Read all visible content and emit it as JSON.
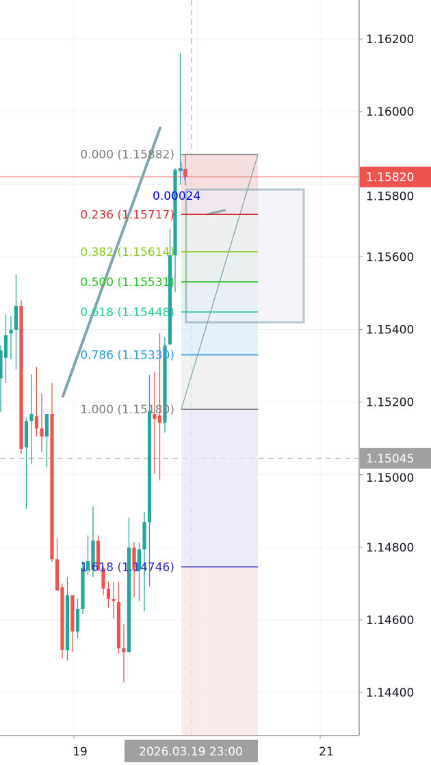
{
  "chart_data": {
    "type": "candlestick",
    "colors": {
      "up": "#26a69a",
      "down": "#ef5350"
    },
    "candles": [
      [
        1.15265,
        1.15356,
        1.15173,
        1.15342
      ],
      [
        1.15322,
        1.1544,
        1.15252,
        1.15384
      ],
      [
        1.15389,
        1.15436,
        1.15318,
        1.15399
      ],
      [
        1.15399,
        1.15552,
        1.1529,
        1.15465
      ],
      [
        1.15465,
        1.1548,
        1.15058,
        1.15071
      ],
      [
        1.15075,
        1.15156,
        1.14905,
        1.15148
      ],
      [
        1.15148,
        1.15276,
        1.15029,
        1.15167
      ],
      [
        1.15161,
        1.15297,
        1.15105,
        1.15127
      ],
      [
        1.15127,
        1.15224,
        1.15063,
        1.15105
      ],
      [
        1.15105,
        1.15167,
        1.1502,
        1.15167
      ],
      [
        1.15167,
        1.15252,
        1.1476,
        1.14767
      ],
      [
        1.14767,
        1.14824,
        1.14681,
        1.14681
      ],
      [
        1.1469,
        1.147,
        1.14494,
        1.14517
      ],
      [
        1.14517,
        1.14718,
        1.14488,
        1.14668
      ],
      [
        1.14668,
        1.14668,
        1.14511,
        1.14568
      ],
      [
        1.14568,
        1.14658,
        1.14549,
        1.1463
      ],
      [
        1.1463,
        1.14762,
        1.14617,
        1.14743
      ],
      [
        1.14737,
        1.14833,
        1.14724,
        1.14762
      ],
      [
        1.14737,
        1.14913,
        1.14718,
        1.14818
      ],
      [
        1.14818,
        1.14833,
        1.14734,
        1.14737
      ],
      [
        1.14743,
        1.14747,
        1.14668,
        1.14686
      ],
      [
        1.14686,
        1.14705,
        1.14634,
        1.14658
      ],
      [
        1.14658,
        1.14705,
        1.14605,
        1.14652
      ],
      [
        1.14649,
        1.14705,
        1.14507,
        1.14522
      ],
      [
        1.14522,
        1.14588,
        1.14428,
        1.14511
      ],
      [
        1.14511,
        1.14881,
        1.14511,
        1.14799
      ],
      [
        1.14799,
        1.14813,
        1.14662,
        1.14737
      ],
      [
        1.14737,
        1.14813,
        1.14652,
        1.14794
      ],
      [
        1.14794,
        1.14897,
        1.14624,
        1.14869
      ],
      [
        1.14869,
        1.15274,
        1.14692,
        1.15176
      ],
      [
        1.15167,
        1.15284,
        1.15003,
        1.15154
      ],
      [
        1.15163,
        1.15389,
        1.14984,
        1.15143
      ],
      [
        1.15143,
        1.15378,
        1.15116,
        1.15356
      ],
      [
        1.15359,
        1.15676,
        1.15356,
        1.15604
      ],
      [
        1.15604,
        1.15844,
        1.15503,
        1.1584
      ],
      [
        1.15836,
        1.16162,
        1.15798,
        1.15844
      ],
      [
        1.15842,
        1.15881,
        1.15798,
        1.1582
      ]
    ],
    "y_axis": {
      "range": [
        1.1432,
        1.1633
      ],
      "ticks": [
        "1.16200",
        "1.16000",
        "1.15800",
        "1.15600",
        "1.15400",
        "1.15200",
        "1.15000",
        "1.14800",
        "1.14600",
        "1.14400"
      ]
    },
    "x_axis": {
      "ticks": [
        "19",
        "21"
      ]
    },
    "grid": true,
    "last_price": {
      "label": "1.15820",
      "value": 1.1582,
      "color": "#ef5350"
    },
    "crosshair": {
      "time_label": "2026.03.19 23:00",
      "price_label": "1.15045",
      "price": 1.15045
    },
    "measure_label": "0.00024",
    "fib_retracement": {
      "levels": [
        {
          "ratio": 0.0,
          "price": 1.15882,
          "label": "0.000 (1.15882)",
          "color": "#808080",
          "fill": "#f2d4d4"
        },
        {
          "ratio": 0.236,
          "price": 1.15717,
          "label": "0.236 (1.15717)",
          "color": "#d32f2f",
          "fill": "#eaf0d8"
        },
        {
          "ratio": 0.382,
          "price": 1.15614,
          "label": "0.382 (1.15614)",
          "color": "#8bc926",
          "fill": "#def0d8"
        },
        {
          "ratio": 0.5,
          "price": 1.15531,
          "label": "0.500 (1.15531)",
          "color": "#22c322",
          "fill": "#d8efe8"
        },
        {
          "ratio": 0.618,
          "price": 1.15448,
          "label": "0.618 (1.15448)",
          "color": "#26c99a",
          "fill": "#dcecf6"
        },
        {
          "ratio": 0.786,
          "price": 1.1533,
          "label": "0.786 (1.15330)",
          "color": "#2a9ad8",
          "fill": "#ececec"
        },
        {
          "ratio": 1.0,
          "price": 1.1518,
          "label": "1.000 (1.15180)",
          "color": "#808080",
          "fill": "#e6e6f8"
        },
        {
          "ratio": 1.618,
          "price": 1.14746,
          "label": "1.618 (1.14746)",
          "color": "#3030c8",
          "fill": "#f8e4e4"
        }
      ]
    }
  }
}
